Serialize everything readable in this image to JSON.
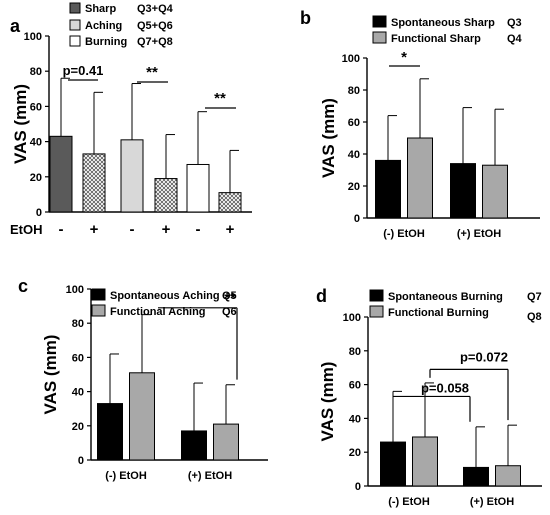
{
  "colors": {
    "sharp": "#5a5a5a",
    "aching": "#d8d8d8",
    "burning": "#ffffff",
    "spontaneous": "#000000",
    "functional": "#a8a8a8",
    "axis": "#000000"
  },
  "chart_data": [
    {
      "panel": "a",
      "type": "bar",
      "ylabel": "VAS (mm)",
      "xlabel": "EtOH",
      "ylim": [
        0,
        100
      ],
      "yticks": [
        "0",
        "20",
        "40",
        "60",
        "80",
        "100"
      ],
      "legend": [
        {
          "name": "Sharp",
          "q": "Q3+Q4",
          "fill": "sharp"
        },
        {
          "name": "Aching",
          "q": "Q5+Q6",
          "fill": "aching"
        },
        {
          "name": "Burning",
          "q": "Q7+Q8",
          "fill": "burning"
        }
      ],
      "etoh_labels": [
        "-",
        "+",
        "-",
        "+",
        "-",
        "+"
      ],
      "bars": [
        {
          "group": "Sharp",
          "etoh": "-",
          "value": 43,
          "sd_top": 76,
          "pattern": "solid"
        },
        {
          "group": "Sharp",
          "etoh": "+",
          "value": 33,
          "sd_top": 68,
          "pattern": "hatch"
        },
        {
          "group": "Aching",
          "etoh": "-",
          "value": 41,
          "sd_top": 73,
          "pattern": "solid"
        },
        {
          "group": "Aching",
          "etoh": "+",
          "value": 19,
          "sd_top": 44,
          "pattern": "hatch"
        },
        {
          "group": "Burning",
          "etoh": "-",
          "value": 27,
          "sd_top": 57,
          "pattern": "solid"
        },
        {
          "group": "Burning",
          "etoh": "+",
          "value": 11,
          "sd_top": 35,
          "pattern": "hatch"
        }
      ],
      "annotations": [
        "p=0.41",
        "**",
        "**"
      ]
    },
    {
      "panel": "b",
      "type": "bar",
      "ylabel": "VAS (mm)",
      "ylim": [
        0,
        100
      ],
      "yticks": [
        "0",
        "20",
        "40",
        "60",
        "80",
        "100"
      ],
      "categories": [
        "(-) EtOH",
        "(+) EtOH"
      ],
      "series": [
        {
          "name": "Spontaneous Sharp",
          "q": "Q3",
          "values": [
            36,
            34
          ],
          "sd_top": [
            64,
            69
          ]
        },
        {
          "name": "Functional Sharp",
          "q": "Q4",
          "values": [
            50,
            33
          ],
          "sd_top": [
            87,
            68
          ]
        }
      ],
      "annotations": [
        "*"
      ]
    },
    {
      "panel": "c",
      "type": "bar",
      "ylabel": "VAS (mm)",
      "ylim": [
        0,
        100
      ],
      "yticks": [
        "0",
        "20",
        "40",
        "60",
        "80",
        "100"
      ],
      "categories": [
        "(-) EtOH",
        "(+) EtOH"
      ],
      "series": [
        {
          "name": "Spontaneous Aching",
          "q": "Q5",
          "values": [
            33,
            17
          ],
          "sd_top": [
            62,
            45
          ]
        },
        {
          "name": "Functional Aching",
          "q": "Q6",
          "values": [
            51,
            21
          ],
          "sd_top": [
            85,
            44
          ]
        }
      ],
      "annotations": [
        "**"
      ]
    },
    {
      "panel": "d",
      "type": "bar",
      "ylabel": "VAS (mm)",
      "ylim": [
        0,
        100
      ],
      "yticks": [
        "0",
        "20",
        "40",
        "60",
        "80",
        "100"
      ],
      "categories": [
        "(-) EtOH",
        "(+) EtOH"
      ],
      "series": [
        {
          "name": "Spontaneous Burning",
          "q": "Q7",
          "values": [
            26,
            11
          ],
          "sd_top": [
            56,
            35
          ]
        },
        {
          "name": "Functional Burning",
          "q": "Q8",
          "values": [
            29,
            12
          ],
          "sd_top": [
            61,
            36
          ]
        }
      ],
      "annotations": [
        "p=0.058",
        "p=0.072"
      ]
    }
  ]
}
